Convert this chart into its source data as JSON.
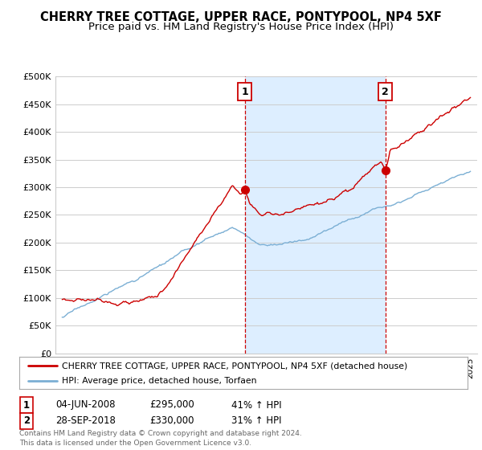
{
  "title": "CHERRY TREE COTTAGE, UPPER RACE, PONTYPOOL, NP4 5XF",
  "subtitle": "Price paid vs. HM Land Registry's House Price Index (HPI)",
  "title_fontsize": 10.5,
  "subtitle_fontsize": 9.5,
  "ylim": [
    0,
    500000
  ],
  "yticks": [
    0,
    50000,
    100000,
    150000,
    200000,
    250000,
    300000,
    350000,
    400000,
    450000,
    500000
  ],
  "ytick_labels": [
    "£0",
    "£50K",
    "£100K",
    "£150K",
    "£200K",
    "£250K",
    "£300K",
    "£350K",
    "£400K",
    "£450K",
    "£500K"
  ],
  "sale1_date_num": 2008.42,
  "sale1_price": 295000,
  "sale1_label": "1",
  "sale1_pct": "41% ↑ HPI",
  "sale1_date_str": "04-JUN-2008",
  "sale2_date_num": 2018.75,
  "sale2_price": 330000,
  "sale2_label": "2",
  "sale2_pct": "31% ↑ HPI",
  "sale2_date_str": "28-SEP-2018",
  "legend_line1": "CHERRY TREE COTTAGE, UPPER RACE, PONTYPOOL, NP4 5XF (detached house)",
  "legend_line2": "HPI: Average price, detached house, Torfaen",
  "footnote": "Contains HM Land Registry data © Crown copyright and database right 2024.\nThis data is licensed under the Open Government Licence v3.0.",
  "red_color": "#cc0000",
  "blue_color": "#7bafd4",
  "shade_color": "#ddeeff",
  "background": "#ffffff",
  "grid_color": "#cccccc",
  "xlim_left": 1994.5,
  "xlim_right": 2025.5,
  "start_year": 1995,
  "end_year": 2025
}
